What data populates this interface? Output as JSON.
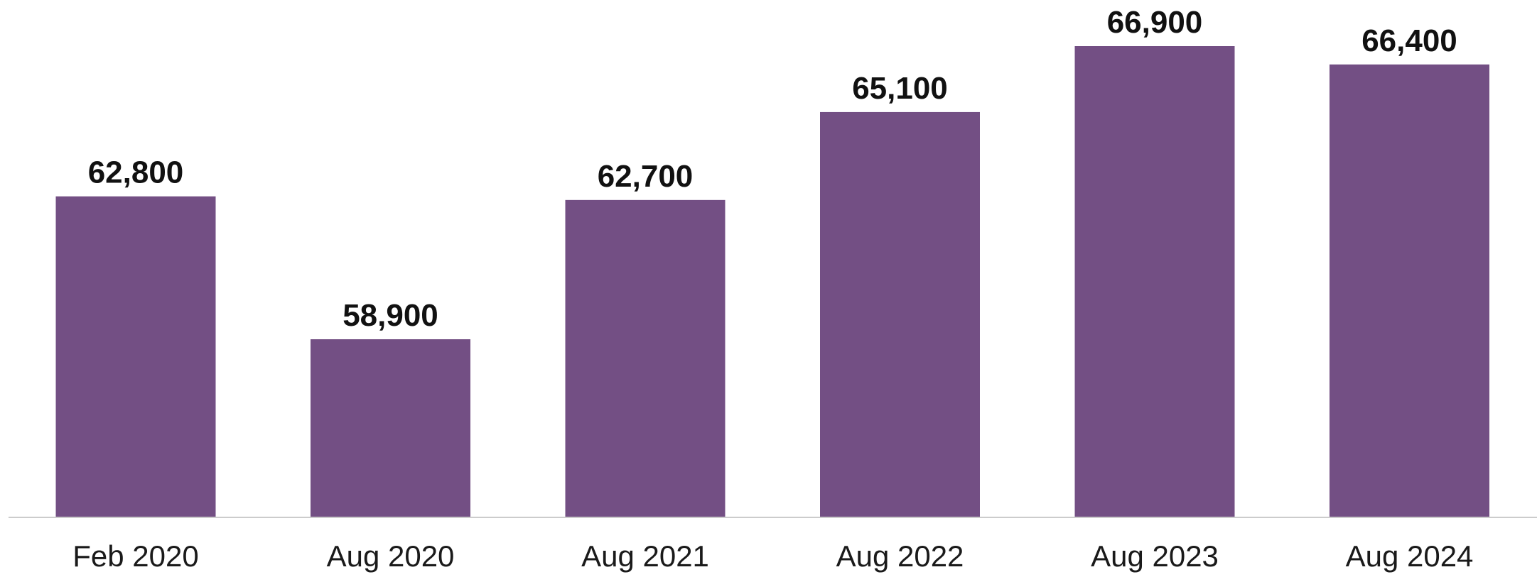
{
  "chart_data": {
    "type": "bar",
    "categories": [
      "Feb 2020",
      "Aug 2020",
      "Aug 2021",
      "Aug 2022",
      "Aug 2023",
      "Aug 2024"
    ],
    "values": [
      62800,
      58900,
      62700,
      65100,
      66900,
      66400
    ],
    "data_labels": [
      "62,800",
      "58,900",
      "62,700",
      "65,100",
      "66,900",
      "66,400"
    ],
    "bar_color": "#734f84",
    "baseline_color": "#cccccc",
    "ylim": [
      50000,
      68000
    ],
    "grid": false,
    "legend": "none",
    "title": "",
    "xlabel": "",
    "ylabel": ""
  }
}
